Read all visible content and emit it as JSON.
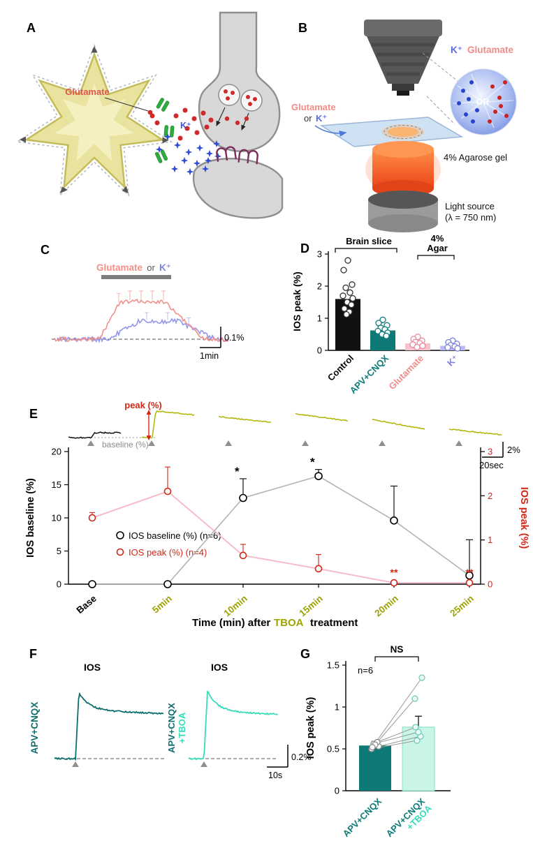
{
  "panels": {
    "A": {
      "label": "A",
      "glutamate": "Glutamate",
      "k": "K⁺"
    },
    "B": {
      "label": "B",
      "inflow_glutamate": "Glutamate",
      "inflow_or": "or",
      "inflow_k": "K⁺",
      "legend_k": "K⁺",
      "legend_glutamate": "Glutamate",
      "inset_or": "OR",
      "gel": "4% Agarose gel",
      "light_1": "Light source",
      "light_2": "(λ = 750 nm)"
    },
    "C": {
      "label": "C",
      "stim_glutamate": "Glutamate",
      "stim_or": "or",
      "stim_k": "K⁺"
    },
    "D": {
      "label": "D",
      "group_brain": "Brain slice",
      "group_agar_1": "4%",
      "group_agar_2": "Agar"
    },
    "E": {
      "label": "E",
      "peak_ann": "peak (%)",
      "baseline_ann": "baseline (%)",
      "xtitle_1": "Time (min) after",
      "xtitle_2": "TBOA",
      "xtitle_3": "treatment"
    },
    "F": {
      "label": "F",
      "trace2_line1": "APV+CNQX",
      "trace2_line2": "+TBOA"
    },
    "G": {
      "label": "G"
    }
  },
  "chart_data": [
    {
      "panel": "C",
      "type": "line",
      "stimulus_label": "Glutamate or K⁺",
      "series": [
        {
          "name": "Glutamate",
          "color": "#f2908a",
          "peak_amplitude_pct": 0.25
        },
        {
          "name": "K⁺",
          "color": "#9297ea",
          "peak_amplitude_pct": 0.12
        }
      ],
      "scalebar": {
        "vertical": "0.1%",
        "horizontal": "1min"
      }
    },
    {
      "panel": "D",
      "type": "bar",
      "ylabel": "IOS peak (%)",
      "ylim": [
        0,
        3
      ],
      "yticks": [
        0,
        1,
        2,
        3
      ],
      "categories": [
        "Control",
        "APV+CNQX",
        "Glutamate",
        "K⁺"
      ],
      "values": [
        1.6,
        0.62,
        0.22,
        0.14
      ],
      "bar_colors": [
        "#111111",
        "#0d7a78",
        "#f6c2ce",
        "#b9bcf2"
      ],
      "point_colors": [
        "#333333",
        "#0d7a78",
        "#e8899b",
        "#7d82d8"
      ],
      "label_colors": [
        "#000000",
        "#0d7a78",
        "#ef8c88",
        "#7d82d8"
      ],
      "points": [
        [
          2.8,
          2.5,
          2.05,
          1.95,
          1.8,
          1.7,
          1.62,
          1.5,
          1.42,
          1.3,
          1.2,
          1.12
        ],
        [
          0.95,
          0.85,
          0.78,
          0.7,
          0.65,
          0.6,
          0.55,
          0.5,
          0.45
        ],
        [
          0.42,
          0.35,
          0.3,
          0.26,
          0.22,
          0.18,
          0.14,
          0.1
        ],
        [
          0.3,
          0.25,
          0.2,
          0.16,
          0.12,
          0.09,
          0.06
        ]
      ],
      "groups": [
        {
          "label": "Brain slice",
          "categories": [
            "Control",
            "APV+CNQX"
          ]
        },
        {
          "label": "4% Agar",
          "categories": [
            "Glutamate",
            "K⁺"
          ]
        }
      ]
    },
    {
      "panel": "E",
      "type": "line",
      "categories": [
        "Base",
        "5min",
        "10min",
        "15min",
        "20min",
        "25min"
      ],
      "xlabel": "Time (min) after TBOA treatment",
      "left_axis": {
        "label": "IOS baseline (%)",
        "lim": [
          0,
          20
        ],
        "ticks": [
          0,
          5,
          10,
          15,
          20
        ]
      },
      "right_axis": {
        "label": "IOS peak (%)",
        "lim": [
          0,
          3
        ],
        "ticks": [
          0,
          1,
          2,
          3
        ],
        "color": "#d22616"
      },
      "series": [
        {
          "name": "IOS baseline (%) (n=6)",
          "axis": "left",
          "line_color": "#b3b3b3",
          "marker_color": "#000000",
          "values": [
            0,
            0,
            13,
            16.3,
            9.6,
            1.3
          ],
          "errors": [
            0.3,
            0.3,
            2.9,
            1.0,
            5.2,
            5.4
          ],
          "sig": [
            "",
            "",
            "*",
            "*",
            "",
            ""
          ]
        },
        {
          "name": "IOS peak (%) (n=4)",
          "axis": "right",
          "line_color": "#f7bccb",
          "marker_color": "#d22616",
          "values": [
            1.5,
            2.1,
            0.65,
            0.35,
            0.03,
            0.03
          ],
          "errors": [
            0.12,
            0.55,
            0.25,
            0.32,
            0.04,
            0.04
          ],
          "sig": [
            "",
            "",
            "",
            "",
            "**",
            "**"
          ]
        }
      ],
      "trace_strip": {
        "colors": [
          "#111111",
          "#b2b400",
          "#b2b400",
          "#b2b400",
          "#b2b400",
          "#b2b400"
        ],
        "scalebar": {
          "vertical": "2%",
          "horizontal": "20sec"
        }
      }
    },
    {
      "panel": "F",
      "type": "line",
      "traces": [
        {
          "name": "APV+CNQX",
          "color": "#0d6f6e",
          "title": "IOS"
        },
        {
          "name": "APV+CNQX +TBOA",
          "color": "#35dcba",
          "title": "IOS"
        }
      ],
      "scalebar": {
        "vertical": "0.2%",
        "horizontal": "10s"
      }
    },
    {
      "panel": "G",
      "type": "bar",
      "ylabel": "IOS peak (%)",
      "ylim": [
        0,
        1.5
      ],
      "yticks": [
        0,
        0.5,
        1,
        1.5
      ],
      "categories": [
        "APV+CNQX",
        "APV+CNQX +TBOA"
      ],
      "values": [
        0.54,
        0.76
      ],
      "errors": [
        0.05,
        0.13
      ],
      "bar_colors": [
        "#0d7a78",
        "#c9f4e6"
      ],
      "significance": "NS",
      "n": "n=6",
      "paired_points": [
        [
          0.5,
          0.6
        ],
        [
          0.53,
          0.65
        ],
        [
          0.56,
          0.7
        ],
        [
          0.58,
          0.76
        ],
        [
          0.55,
          1.1
        ],
        [
          0.52,
          1.35
        ]
      ]
    }
  ]
}
